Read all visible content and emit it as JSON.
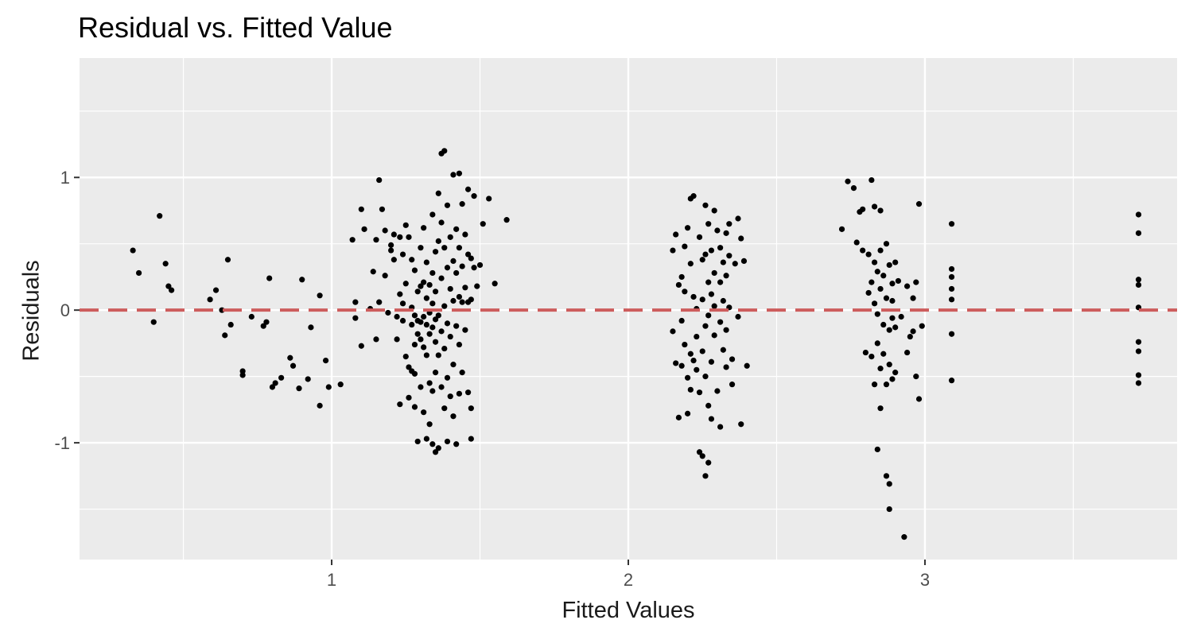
{
  "chart_data": {
    "type": "scatter",
    "title": "Residual vs. Fitted Value",
    "xlabel": "Fitted Values",
    "ylabel": "Residuals",
    "xlim": [
      0.15,
      3.85
    ],
    "ylim": [
      -1.88,
      1.9
    ],
    "x_ticks": [
      1,
      2,
      3
    ],
    "x_tick_labels": [
      "1",
      "2",
      "3"
    ],
    "y_ticks": [
      -1,
      0,
      1
    ],
    "y_tick_labels": [
      "-1",
      "0",
      "1"
    ],
    "grid": true,
    "legend": "none",
    "reference_line": {
      "y": 0,
      "style": "dashed",
      "color": "#cd5c5c"
    },
    "colors": {
      "panel": "#ebebeb",
      "grid": "#ffffff",
      "point": "#000000",
      "reference": "#cd5c5c"
    },
    "points": [
      [
        0.33,
        0.45
      ],
      [
        0.35,
        0.28
      ],
      [
        0.4,
        -0.09
      ],
      [
        0.42,
        0.71
      ],
      [
        0.44,
        0.35
      ],
      [
        0.45,
        0.18
      ],
      [
        0.46,
        0.15
      ],
      [
        0.59,
        0.08
      ],
      [
        0.61,
        0.15
      ],
      [
        0.63,
        0.0
      ],
      [
        0.64,
        -0.19
      ],
      [
        0.65,
        0.38
      ],
      [
        0.66,
        -0.11
      ],
      [
        0.7,
        -0.46
      ],
      [
        0.7,
        -0.49
      ],
      [
        0.73,
        -0.05
      ],
      [
        0.77,
        -0.12
      ],
      [
        0.78,
        -0.09
      ],
      [
        0.79,
        0.24
      ],
      [
        0.8,
        -0.58
      ],
      [
        0.81,
        -0.55
      ],
      [
        0.83,
        -0.51
      ],
      [
        0.86,
        -0.36
      ],
      [
        0.87,
        -0.42
      ],
      [
        0.89,
        -0.59
      ],
      [
        0.9,
        0.23
      ],
      [
        0.92,
        -0.52
      ],
      [
        0.93,
        -0.13
      ],
      [
        0.96,
        0.11
      ],
      [
        0.96,
        -0.72
      ],
      [
        0.98,
        -0.38
      ],
      [
        0.99,
        -0.58
      ],
      [
        1.03,
        -0.56
      ],
      [
        1.07,
        0.53
      ],
      [
        1.08,
        0.06
      ],
      [
        1.08,
        -0.06
      ],
      [
        1.1,
        0.76
      ],
      [
        1.1,
        -0.27
      ],
      [
        1.11,
        0.61
      ],
      [
        1.13,
        0.01
      ],
      [
        1.14,
        0.29
      ],
      [
        1.15,
        0.53
      ],
      [
        1.15,
        -0.22
      ],
      [
        1.16,
        0.98
      ],
      [
        1.16,
        0.06
      ],
      [
        1.17,
        0.76
      ],
      [
        1.18,
        0.6
      ],
      [
        1.18,
        0.26
      ],
      [
        1.19,
        -0.02
      ],
      [
        1.2,
        0.49
      ],
      [
        1.2,
        0.45
      ],
      [
        1.21,
        0.57
      ],
      [
        1.21,
        0.38
      ],
      [
        1.22,
        -0.05
      ],
      [
        1.22,
        -0.22
      ],
      [
        1.23,
        0.55
      ],
      [
        1.23,
        0.12
      ],
      [
        1.23,
        -0.71
      ],
      [
        1.24,
        0.42
      ],
      [
        1.24,
        0.05
      ],
      [
        1.24,
        -0.08
      ],
      [
        1.25,
        0.64
      ],
      [
        1.25,
        0.2
      ],
      [
        1.25,
        -0.35
      ],
      [
        1.26,
        -0.43
      ],
      [
        1.26,
        -0.66
      ],
      [
        1.26,
        0.55
      ],
      [
        1.27,
        0.38
      ],
      [
        1.27,
        0.02
      ],
      [
        1.27,
        -0.11
      ],
      [
        1.27,
        -0.46
      ],
      [
        1.28,
        0.3
      ],
      [
        1.28,
        -0.04
      ],
      [
        1.28,
        -0.26
      ],
      [
        1.28,
        -0.48
      ],
      [
        1.28,
        -0.73
      ],
      [
        1.29,
        0.14
      ],
      [
        1.29,
        -0.08
      ],
      [
        1.29,
        -0.18
      ],
      [
        1.29,
        -0.99
      ],
      [
        1.3,
        0.47
      ],
      [
        1.3,
        0.18
      ],
      [
        1.3,
        -0.09
      ],
      [
        1.3,
        -0.22
      ],
      [
        1.3,
        -0.58
      ],
      [
        1.31,
        0.62
      ],
      [
        1.31,
        0.21
      ],
      [
        1.31,
        -0.05
      ],
      [
        1.31,
        -0.28
      ],
      [
        1.31,
        -0.77
      ],
      [
        1.32,
        0.36
      ],
      [
        1.32,
        0.09
      ],
      [
        1.32,
        -0.11
      ],
      [
        1.32,
        -0.34
      ],
      [
        1.32,
        -0.97
      ],
      [
        1.33,
        0.19
      ],
      [
        1.33,
        -0.02
      ],
      [
        1.33,
        -0.18
      ],
      [
        1.33,
        -0.55
      ],
      [
        1.33,
        -0.86
      ],
      [
        1.34,
        0.72
      ],
      [
        1.34,
        0.28
      ],
      [
        1.34,
        0.05
      ],
      [
        1.34,
        -0.13
      ],
      [
        1.34,
        -0.61
      ],
      [
        1.34,
        -1.01
      ],
      [
        1.35,
        0.44
      ],
      [
        1.35,
        0.14
      ],
      [
        1.35,
        -0.07
      ],
      [
        1.35,
        -0.24
      ],
      [
        1.35,
        -0.47
      ],
      [
        1.35,
        -1.07
      ],
      [
        1.36,
        0.88
      ],
      [
        1.36,
        0.52
      ],
      [
        1.36,
        -0.04
      ],
      [
        1.36,
        -0.34
      ],
      [
        1.36,
        -1.04
      ],
      [
        1.37,
        0.66
      ],
      [
        1.37,
        0.24
      ],
      [
        1.37,
        -0.16
      ],
      [
        1.37,
        -0.58
      ],
      [
        1.37,
        1.18
      ],
      [
        1.38,
        0.47
      ],
      [
        1.38,
        0.03
      ],
      [
        1.38,
        -0.29
      ],
      [
        1.38,
        -0.74
      ],
      [
        1.38,
        1.2
      ],
      [
        1.39,
        0.79
      ],
      [
        1.39,
        0.32
      ],
      [
        1.39,
        -0.1
      ],
      [
        1.39,
        -0.51
      ],
      [
        1.39,
        -0.99
      ],
      [
        1.4,
        0.55
      ],
      [
        1.4,
        0.16
      ],
      [
        1.4,
        -0.2
      ],
      [
        1.4,
        -0.65
      ],
      [
        1.41,
        1.02
      ],
      [
        1.41,
        0.37
      ],
      [
        1.41,
        0.07
      ],
      [
        1.41,
        -0.41
      ],
      [
        1.41,
        -0.8
      ],
      [
        1.42,
        0.61
      ],
      [
        1.42,
        0.28
      ],
      [
        1.42,
        -0.12
      ],
      [
        1.42,
        -1.01
      ],
      [
        1.43,
        1.03
      ],
      [
        1.43,
        0.47
      ],
      [
        1.43,
        0.1
      ],
      [
        1.43,
        -0.26
      ],
      [
        1.43,
        -0.63
      ],
      [
        1.44,
        0.8
      ],
      [
        1.44,
        0.33
      ],
      [
        1.44,
        0.06
      ],
      [
        1.44,
        -0.47
      ],
      [
        1.45,
        0.57
      ],
      [
        1.45,
        0.17
      ],
      [
        1.45,
        -0.15
      ],
      [
        1.46,
        0.91
      ],
      [
        1.46,
        0.42
      ],
      [
        1.46,
        0.06
      ],
      [
        1.46,
        -0.62
      ],
      [
        1.47,
        0.39
      ],
      [
        1.47,
        0.08
      ],
      [
        1.47,
        -0.74
      ],
      [
        1.47,
        -0.97
      ],
      [
        1.48,
        0.86
      ],
      [
        1.48,
        0.32
      ],
      [
        1.49,
        0.18
      ],
      [
        1.5,
        0.34
      ],
      [
        1.51,
        0.65
      ],
      [
        1.53,
        0.84
      ],
      [
        1.55,
        0.2
      ],
      [
        1.59,
        0.68
      ],
      [
        2.15,
        0.45
      ],
      [
        2.15,
        -0.16
      ],
      [
        2.16,
        0.57
      ],
      [
        2.16,
        -0.4
      ],
      [
        2.17,
        0.19
      ],
      [
        2.17,
        -0.81
      ],
      [
        2.18,
        0.25
      ],
      [
        2.18,
        -0.08
      ],
      [
        2.18,
        -0.42
      ],
      [
        2.19,
        0.48
      ],
      [
        2.19,
        0.14
      ],
      [
        2.19,
        -0.26
      ],
      [
        2.2,
        -0.78
      ],
      [
        2.2,
        0.62
      ],
      [
        2.2,
        -0.51
      ],
      [
        2.21,
        0.84
      ],
      [
        2.21,
        0.35
      ],
      [
        2.21,
        -0.33
      ],
      [
        2.21,
        -0.6
      ],
      [
        2.22,
        0.1
      ],
      [
        2.22,
        -0.38
      ],
      [
        2.22,
        0.86
      ],
      [
        2.23,
        0.01
      ],
      [
        2.23,
        -0.2
      ],
      [
        2.23,
        -0.45
      ],
      [
        2.24,
        0.55
      ],
      [
        2.24,
        -0.62
      ],
      [
        2.24,
        -1.07
      ],
      [
        2.25,
        0.38
      ],
      [
        2.25,
        0.08
      ],
      [
        2.25,
        -0.31
      ],
      [
        2.25,
        -1.1
      ],
      [
        2.26,
        0.79
      ],
      [
        2.26,
        0.42
      ],
      [
        2.26,
        -0.12
      ],
      [
        2.26,
        -0.5
      ],
      [
        2.26,
        -1.25
      ],
      [
        2.27,
        0.65
      ],
      [
        2.27,
        0.21
      ],
      [
        2.27,
        -0.04
      ],
      [
        2.27,
        -0.72
      ],
      [
        2.27,
        -1.15
      ],
      [
        2.28,
        0.45
      ],
      [
        2.28,
        0.12
      ],
      [
        2.28,
        -0.39
      ],
      [
        2.28,
        -0.82
      ],
      [
        2.29,
        0.75
      ],
      [
        2.29,
        0.28
      ],
      [
        2.29,
        0.03
      ],
      [
        2.29,
        -0.19
      ],
      [
        2.3,
        0.6
      ],
      [
        2.3,
        -0.61
      ],
      [
        2.31,
        0.47
      ],
      [
        2.31,
        0.21
      ],
      [
        2.31,
        -0.09
      ],
      [
        2.31,
        -0.88
      ],
      [
        2.32,
        0.36
      ],
      [
        2.32,
        0.07
      ],
      [
        2.32,
        -0.3
      ],
      [
        2.33,
        0.58
      ],
      [
        2.33,
        0.26
      ],
      [
        2.33,
        -0.15
      ],
      [
        2.33,
        -0.43
      ],
      [
        2.34,
        0.65
      ],
      [
        2.34,
        0.41
      ],
      [
        2.34,
        0.02
      ],
      [
        2.35,
        -0.37
      ],
      [
        2.35,
        -0.56
      ],
      [
        2.36,
        0.35
      ],
      [
        2.37,
        0.69
      ],
      [
        2.37,
        -0.05
      ],
      [
        2.38,
        0.54
      ],
      [
        2.38,
        -0.86
      ],
      [
        2.39,
        0.37
      ],
      [
        2.4,
        -0.42
      ],
      [
        2.72,
        0.61
      ],
      [
        2.74,
        0.97
      ],
      [
        2.76,
        0.92
      ],
      [
        2.77,
        0.51
      ],
      [
        2.78,
        0.74
      ],
      [
        2.79,
        0.76
      ],
      [
        2.79,
        0.45
      ],
      [
        2.8,
        -0.32
      ],
      [
        2.81,
        0.42
      ],
      [
        2.81,
        0.13
      ],
      [
        2.82,
        0.98
      ],
      [
        2.82,
        0.21
      ],
      [
        2.82,
        -0.35
      ],
      [
        2.83,
        0.36
      ],
      [
        2.83,
        0.05
      ],
      [
        2.83,
        -0.56
      ],
      [
        2.83,
        0.78
      ],
      [
        2.84,
        0.29
      ],
      [
        2.84,
        -0.03
      ],
      [
        2.84,
        -0.25
      ],
      [
        2.84,
        -1.05
      ],
      [
        2.85,
        0.75
      ],
      [
        2.85,
        0.45
      ],
      [
        2.85,
        0.16
      ],
      [
        2.85,
        -0.44
      ],
      [
        2.85,
        -0.74
      ],
      [
        2.86,
        0.26
      ],
      [
        2.86,
        -0.11
      ],
      [
        2.86,
        -0.33
      ],
      [
        2.87,
        0.5
      ],
      [
        2.87,
        0.09
      ],
      [
        2.87,
        -0.56
      ],
      [
        2.87,
        -1.25
      ],
      [
        2.88,
        0.34
      ],
      [
        2.88,
        -0.15
      ],
      [
        2.88,
        -0.41
      ],
      [
        2.88,
        -1.31
      ],
      [
        2.88,
        -1.5
      ],
      [
        2.89,
        0.2
      ],
      [
        2.89,
        0.07
      ],
      [
        2.89,
        -0.06
      ],
      [
        2.89,
        -0.52
      ],
      [
        2.9,
        0.36
      ],
      [
        2.9,
        -0.13
      ],
      [
        2.9,
        -0.47
      ],
      [
        2.91,
        0.22
      ],
      [
        2.92,
        -0.05
      ],
      [
        2.93,
        -1.71
      ],
      [
        2.94,
        -0.32
      ],
      [
        2.94,
        0.18
      ],
      [
        2.95,
        -0.2
      ],
      [
        2.96,
        0.09
      ],
      [
        2.96,
        -0.16
      ],
      [
        2.97,
        0.21
      ],
      [
        2.97,
        -0.5
      ],
      [
        2.98,
        0.8
      ],
      [
        2.98,
        -0.67
      ],
      [
        2.99,
        -0.12
      ],
      [
        3.09,
        0.65
      ],
      [
        3.09,
        0.31
      ],
      [
        3.09,
        0.25
      ],
      [
        3.09,
        0.16
      ],
      [
        3.09,
        0.08
      ],
      [
        3.09,
        -0.18
      ],
      [
        3.09,
        -0.53
      ],
      [
        3.72,
        0.72
      ],
      [
        3.72,
        0.58
      ],
      [
        3.72,
        0.23
      ],
      [
        3.72,
        0.19
      ],
      [
        3.72,
        0.02
      ],
      [
        3.72,
        -0.24
      ],
      [
        3.72,
        -0.31
      ],
      [
        3.72,
        -0.49
      ],
      [
        3.72,
        -0.55
      ]
    ]
  }
}
